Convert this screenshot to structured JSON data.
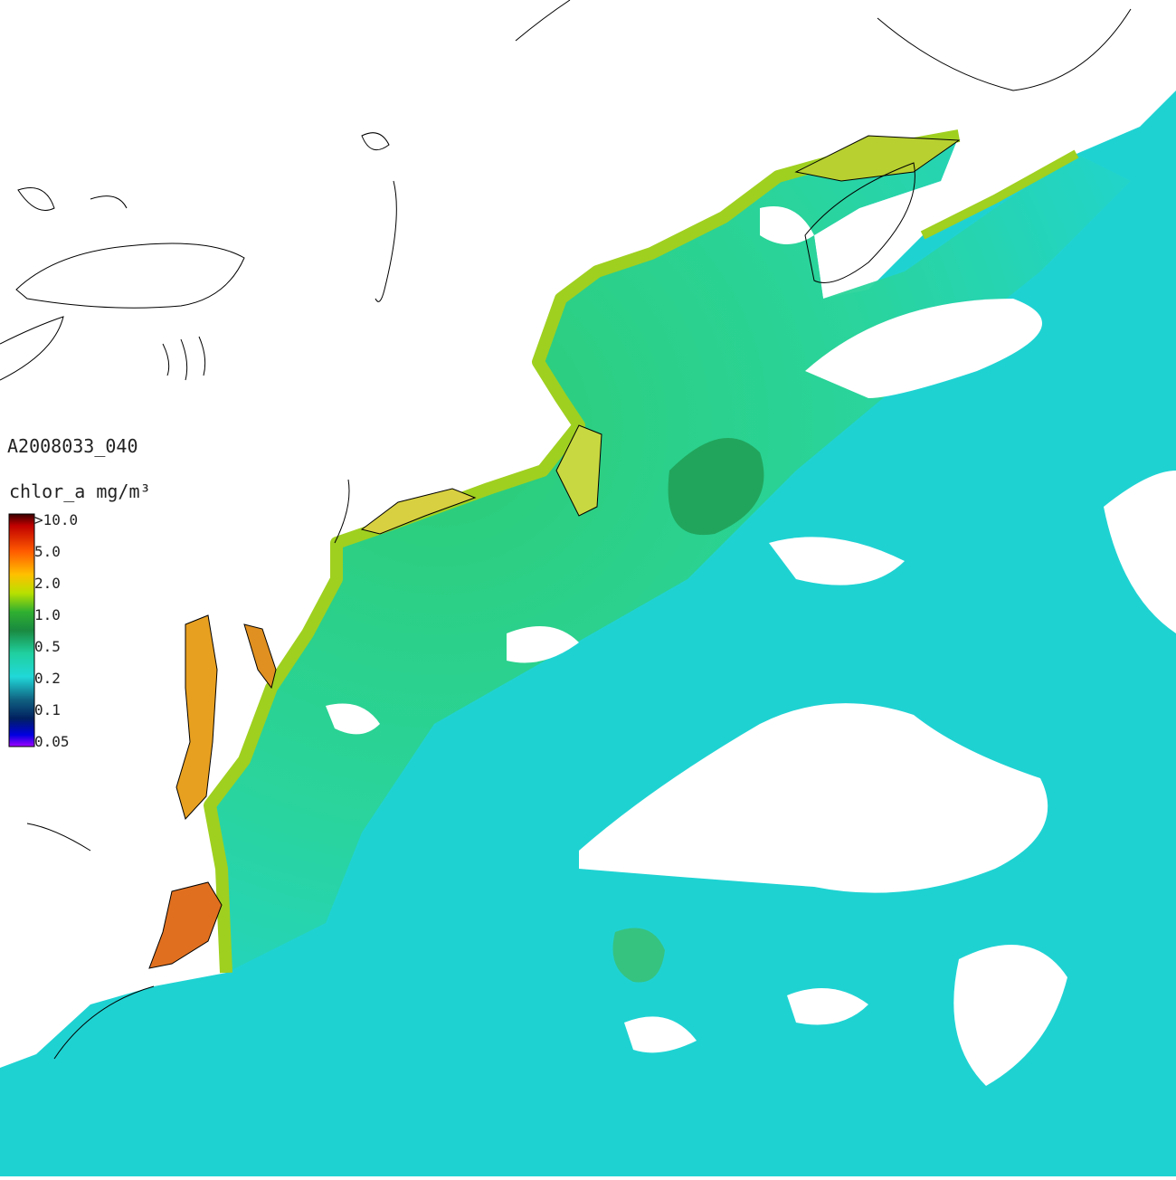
{
  "title": "A2008033_040",
  "legend": {
    "label": "chlor_a mg/m³",
    "ticks": [
      ">10.0",
      "5.0",
      "2.0",
      "1.0",
      "0.5",
      "0.2",
      "0.1",
      "0.05"
    ]
  }
}
